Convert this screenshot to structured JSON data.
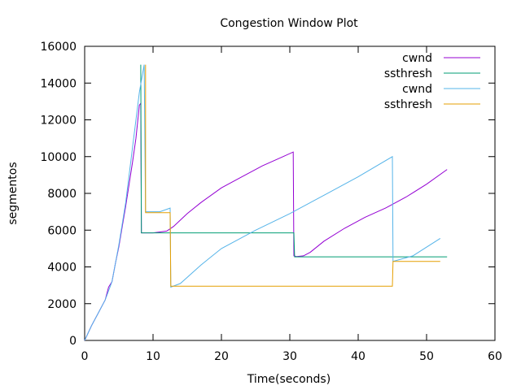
{
  "chart_data": {
    "type": "line",
    "title": "Congestion Window Plot",
    "xlabel": "Time(seconds)",
    "ylabel": "segmentos",
    "xlim": [
      0,
      60
    ],
    "ylim": [
      0,
      16000
    ],
    "x_ticks": [
      0,
      10,
      20,
      30,
      40,
      50,
      60
    ],
    "y_ticks": [
      0,
      2000,
      4000,
      6000,
      8000,
      10000,
      12000,
      14000,
      16000
    ],
    "grid": false,
    "legend_position": "top-right",
    "series": [
      {
        "name": "cwnd",
        "color": "#9400d3",
        "points": [
          [
            0,
            0
          ],
          [
            1,
            800
          ],
          [
            2,
            1500
          ],
          [
            3,
            2200
          ],
          [
            3.5,
            2900
          ],
          [
            4,
            3200
          ],
          [
            4.5,
            4200
          ],
          [
            5,
            5100
          ],
          [
            5.5,
            6200
          ],
          [
            6,
            7300
          ],
          [
            6.5,
            8500
          ],
          [
            7,
            9700
          ],
          [
            7.5,
            11000
          ],
          [
            8,
            12800
          ],
          [
            8.2,
            12900
          ],
          [
            8.3,
            5850
          ],
          [
            10,
            5850
          ],
          [
            11,
            5900
          ],
          [
            12,
            5950
          ],
          [
            13,
            6200
          ],
          [
            15,
            6900
          ],
          [
            17,
            7500
          ],
          [
            20,
            8300
          ],
          [
            23,
            8900
          ],
          [
            26,
            9500
          ],
          [
            29,
            10000
          ],
          [
            30.5,
            10250
          ],
          [
            30.6,
            4600
          ],
          [
            31,
            4560
          ],
          [
            32,
            4600
          ],
          [
            33,
            4800
          ],
          [
            35,
            5400
          ],
          [
            38,
            6100
          ],
          [
            41,
            6700
          ],
          [
            44,
            7200
          ],
          [
            47,
            7800
          ],
          [
            50,
            8500
          ],
          [
            53,
            9300
          ]
        ]
      },
      {
        "name": "ssthresh",
        "color": "#009e73",
        "points": [
          [
            8.2,
            15000
          ],
          [
            8.3,
            5850
          ],
          [
            30.6,
            5850
          ],
          [
            30.7,
            4550
          ],
          [
            53,
            4550
          ]
        ]
      },
      {
        "name": "cwnd",
        "color": "#56b4e9",
        "points": [
          [
            0,
            0
          ],
          [
            1,
            800
          ],
          [
            2,
            1500
          ],
          [
            3,
            2200
          ],
          [
            4,
            3200
          ],
          [
            5,
            5200
          ],
          [
            6,
            7500
          ],
          [
            7,
            10500
          ],
          [
            8,
            13500
          ],
          [
            8.7,
            15000
          ],
          [
            8.9,
            7000
          ],
          [
            11,
            7000
          ],
          [
            12.5,
            7200
          ],
          [
            12.6,
            2900
          ],
          [
            14,
            3100
          ],
          [
            17,
            4100
          ],
          [
            20,
            5000
          ],
          [
            25,
            6000
          ],
          [
            30,
            6900
          ],
          [
            35,
            7900
          ],
          [
            40,
            8900
          ],
          [
            45,
            10000
          ],
          [
            45.1,
            4300
          ],
          [
            48,
            4600
          ],
          [
            52,
            5550
          ]
        ]
      },
      {
        "name": "ssthresh",
        "color": "#e69f00",
        "points": [
          [
            8.9,
            15000
          ],
          [
            8.9,
            6950
          ],
          [
            12.5,
            6950
          ],
          [
            12.6,
            2950
          ],
          [
            45,
            2950
          ],
          [
            45.1,
            4300
          ],
          [
            52,
            4300
          ]
        ]
      }
    ]
  }
}
